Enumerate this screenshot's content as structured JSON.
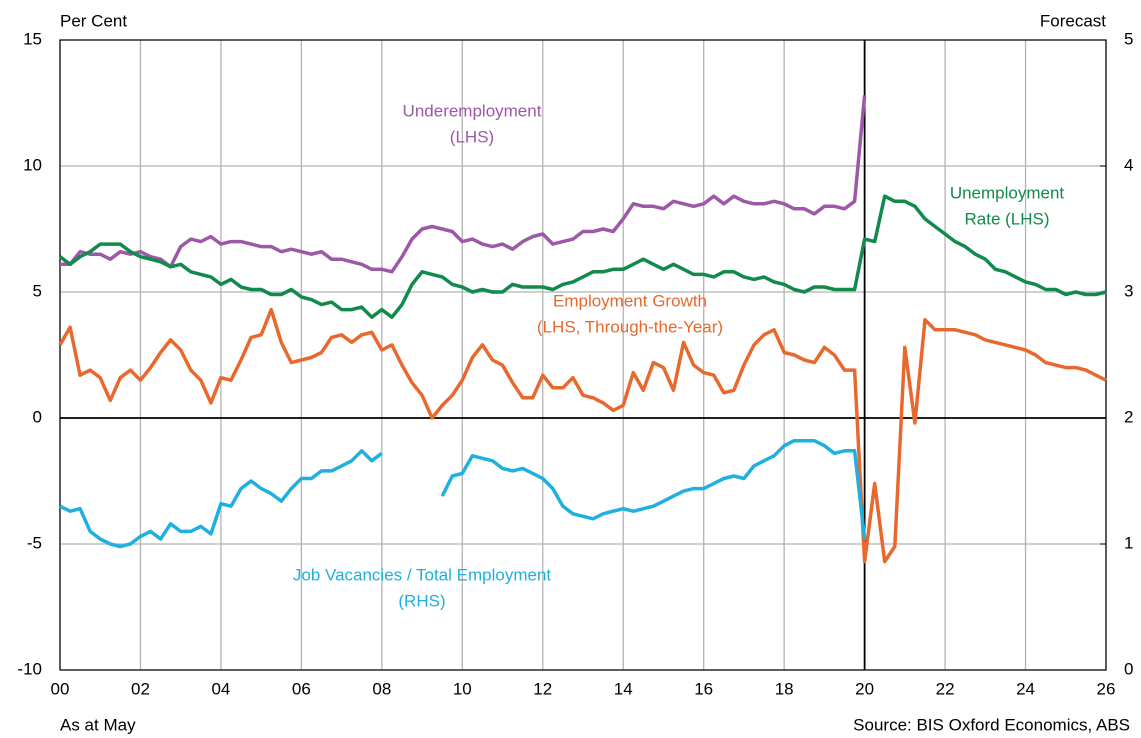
{
  "chart_data": {
    "type": "line",
    "y_label": "Per Cent",
    "annotation": "Forecast",
    "note": "As at May",
    "source": "Source: BIS Oxford Economics, ABS",
    "forecast_start": 20,
    "x": [
      0,
      0.25,
      0.5,
      0.75,
      1,
      1.25,
      1.5,
      1.75,
      2,
      2.25,
      2.5,
      2.75,
      3,
      3.25,
      3.5,
      3.75,
      4,
      4.25,
      4.5,
      4.75,
      5,
      5.25,
      5.5,
      5.75,
      6,
      6.25,
      6.5,
      6.75,
      7,
      7.25,
      7.5,
      7.75,
      8,
      8.25,
      8.5,
      8.75,
      9,
      9.25,
      9.5,
      9.75,
      10,
      10.25,
      10.5,
      10.75,
      11,
      11.25,
      11.5,
      11.75,
      12,
      12.25,
      12.5,
      12.75,
      13,
      13.25,
      13.5,
      13.75,
      14,
      14.25,
      14.5,
      14.75,
      15,
      15.25,
      15.5,
      15.75,
      16,
      16.25,
      16.5,
      16.75,
      17,
      17.25,
      17.5,
      17.75,
      18,
      18.25,
      18.5,
      18.75,
      19,
      19.25,
      19.5,
      19.75,
      20,
      20.25,
      20.5,
      20.75,
      21,
      21.25,
      21.5,
      21.75,
      22,
      22.25,
      22.5,
      22.75,
      23,
      23.25,
      23.5,
      23.75,
      24,
      24.25,
      24.5,
      24.75,
      25,
      25.25,
      25.5,
      25.75,
      26
    ],
    "xlim": [
      0,
      26
    ],
    "xticks": [
      {
        "value": 0,
        "label": "00"
      },
      {
        "value": 2,
        "label": "02"
      },
      {
        "value": 4,
        "label": "04"
      },
      {
        "value": 6,
        "label": "06"
      },
      {
        "value": 8,
        "label": "08"
      },
      10,
      12,
      14,
      16,
      18,
      20,
      22,
      24,
      26
    ],
    "ylim": [
      -10,
      15
    ],
    "yticks": [
      -10,
      -5,
      0,
      5,
      10,
      15
    ],
    "y2lim": [
      0,
      5
    ],
    "y2ticks": [
      0,
      1,
      2,
      3,
      4,
      5
    ],
    "grid": true,
    "series": [
      {
        "name": [
          "Underemployment",
          "(LHS)"
        ],
        "color": "#9e58a8",
        "values": [
          6.1,
          6.1,
          6.6,
          6.5,
          6.5,
          6.3,
          6.6,
          6.5,
          6.6,
          6.4,
          6.3,
          6.0,
          6.8,
          7.1,
          7.0,
          7.2,
          6.9,
          7.0,
          7.0,
          6.9,
          6.8,
          6.8,
          6.6,
          6.7,
          6.6,
          6.5,
          6.6,
          6.3,
          6.3,
          6.2,
          6.1,
          5.9,
          5.9,
          5.8,
          6.4,
          7.1,
          7.5,
          7.6,
          7.5,
          7.4,
          7.0,
          7.1,
          6.9,
          6.8,
          6.9,
          6.7,
          7.0,
          7.2,
          7.3,
          6.9,
          7.0,
          7.1,
          7.4,
          7.4,
          7.5,
          7.4,
          7.9,
          8.5,
          8.4,
          8.4,
          8.3,
          8.6,
          8.5,
          8.4,
          8.5,
          8.8,
          8.5,
          8.8,
          8.6,
          8.5,
          8.5,
          8.6,
          8.5,
          8.3,
          8.3,
          8.1,
          8.4,
          8.4,
          8.3,
          8.6,
          12.8,
          null,
          null,
          null,
          null,
          null,
          null,
          null,
          null,
          null,
          null,
          null,
          null,
          null,
          null,
          null,
          null,
          null,
          null,
          null,
          null,
          null,
          null,
          null,
          null
        ]
      },
      {
        "name": [
          "Unemployment",
          "Rate (LHS)"
        ],
        "color": "#118a4c",
        "values": [
          6.4,
          6.1,
          6.4,
          6.6,
          6.9,
          6.9,
          6.9,
          6.6,
          6.4,
          6.3,
          6.2,
          6.0,
          6.1,
          5.8,
          5.7,
          5.6,
          5.3,
          5.5,
          5.2,
          5.1,
          5.1,
          4.9,
          4.9,
          5.1,
          4.8,
          4.7,
          4.5,
          4.6,
          4.3,
          4.3,
          4.4,
          4.0,
          4.3,
          4.0,
          4.5,
          5.3,
          5.8,
          5.7,
          5.6,
          5.3,
          5.2,
          5.0,
          5.1,
          5.0,
          5.0,
          5.3,
          5.2,
          5.2,
          5.2,
          5.1,
          5.3,
          5.4,
          5.6,
          5.8,
          5.8,
          5.9,
          5.9,
          6.1,
          6.3,
          6.1,
          5.9,
          6.1,
          5.9,
          5.7,
          5.7,
          5.6,
          5.8,
          5.8,
          5.6,
          5.5,
          5.6,
          5.4,
          5.3,
          5.1,
          5.0,
          5.2,
          5.2,
          5.1,
          5.1,
          5.1,
          7.1,
          7.0,
          8.8,
          8.6,
          8.6,
          8.4,
          7.9,
          7.6,
          7.3,
          7.0,
          6.8,
          6.5,
          6.3,
          5.9,
          5.8,
          5.6,
          5.4,
          5.3,
          5.1,
          5.1,
          4.9,
          5.0,
          4.9,
          4.9,
          5.0
        ]
      },
      {
        "name": [
          "Employment Growth",
          "(LHS, Through-the-Year)"
        ],
        "color": "#e8682d",
        "values": [
          2.9,
          3.6,
          1.7,
          1.9,
          1.6,
          0.7,
          1.6,
          1.9,
          1.5,
          2.0,
          2.6,
          3.1,
          2.7,
          1.9,
          1.5,
          0.6,
          1.6,
          1.5,
          2.3,
          3.2,
          3.3,
          4.3,
          3.0,
          2.2,
          2.3,
          2.4,
          2.6,
          3.2,
          3.3,
          3.0,
          3.3,
          3.4,
          2.7,
          2.9,
          2.1,
          1.4,
          0.9,
          0.0,
          0.5,
          0.9,
          1.5,
          2.4,
          2.9,
          2.3,
          2.1,
          1.4,
          0.8,
          0.8,
          1.7,
          1.2,
          1.2,
          1.6,
          0.9,
          0.8,
          0.6,
          0.3,
          0.5,
          1.8,
          1.1,
          2.2,
          2.0,
          1.1,
          3.0,
          2.1,
          1.8,
          1.7,
          1.0,
          1.1,
          2.1,
          2.9,
          3.3,
          3.5,
          2.6,
          2.5,
          2.3,
          2.2,
          2.8,
          2.5,
          1.9,
          1.9,
          -5.7,
          -2.6,
          -5.7,
          -5.1,
          2.8,
          -0.2,
          3.9,
          3.5,
          3.5,
          3.5,
          3.4,
          3.3,
          3.1,
          3.0,
          2.9,
          2.8,
          2.7,
          2.5,
          2.2,
          2.1,
          2.0,
          2.0,
          1.9,
          1.7,
          1.5
        ]
      },
      {
        "name": [
          "Job Vacancies / Total Employment",
          "(RHS)"
        ],
        "color": "#1fb0e0",
        "axis": "y2",
        "values": [
          1.3,
          1.26,
          1.28,
          1.1,
          1.04,
          1.0,
          0.98,
          1.0,
          1.06,
          1.1,
          1.04,
          1.16,
          1.1,
          1.1,
          1.14,
          1.08,
          1.32,
          1.3,
          1.44,
          1.5,
          1.44,
          1.4,
          1.34,
          1.44,
          1.52,
          1.52,
          1.58,
          1.58,
          1.62,
          1.66,
          1.74,
          1.66,
          1.72,
          null,
          null,
          null,
          null,
          null,
          1.38,
          1.54,
          1.56,
          1.7,
          1.68,
          1.66,
          1.6,
          1.58,
          1.6,
          1.56,
          1.52,
          1.44,
          1.3,
          1.24,
          1.22,
          1.2,
          1.24,
          1.26,
          1.28,
          1.26,
          1.28,
          1.3,
          1.34,
          1.38,
          1.42,
          1.44,
          1.44,
          1.48,
          1.52,
          1.54,
          1.52,
          1.62,
          1.66,
          1.7,
          1.78,
          1.82,
          1.82,
          1.82,
          1.78,
          1.72,
          1.74,
          1.74,
          1.04,
          null,
          null,
          null,
          null,
          null,
          null,
          null,
          null,
          null,
          null,
          null,
          null,
          null,
          null,
          null,
          null,
          null,
          null,
          null,
          null,
          null,
          null,
          null,
          null
        ]
      }
    ]
  }
}
